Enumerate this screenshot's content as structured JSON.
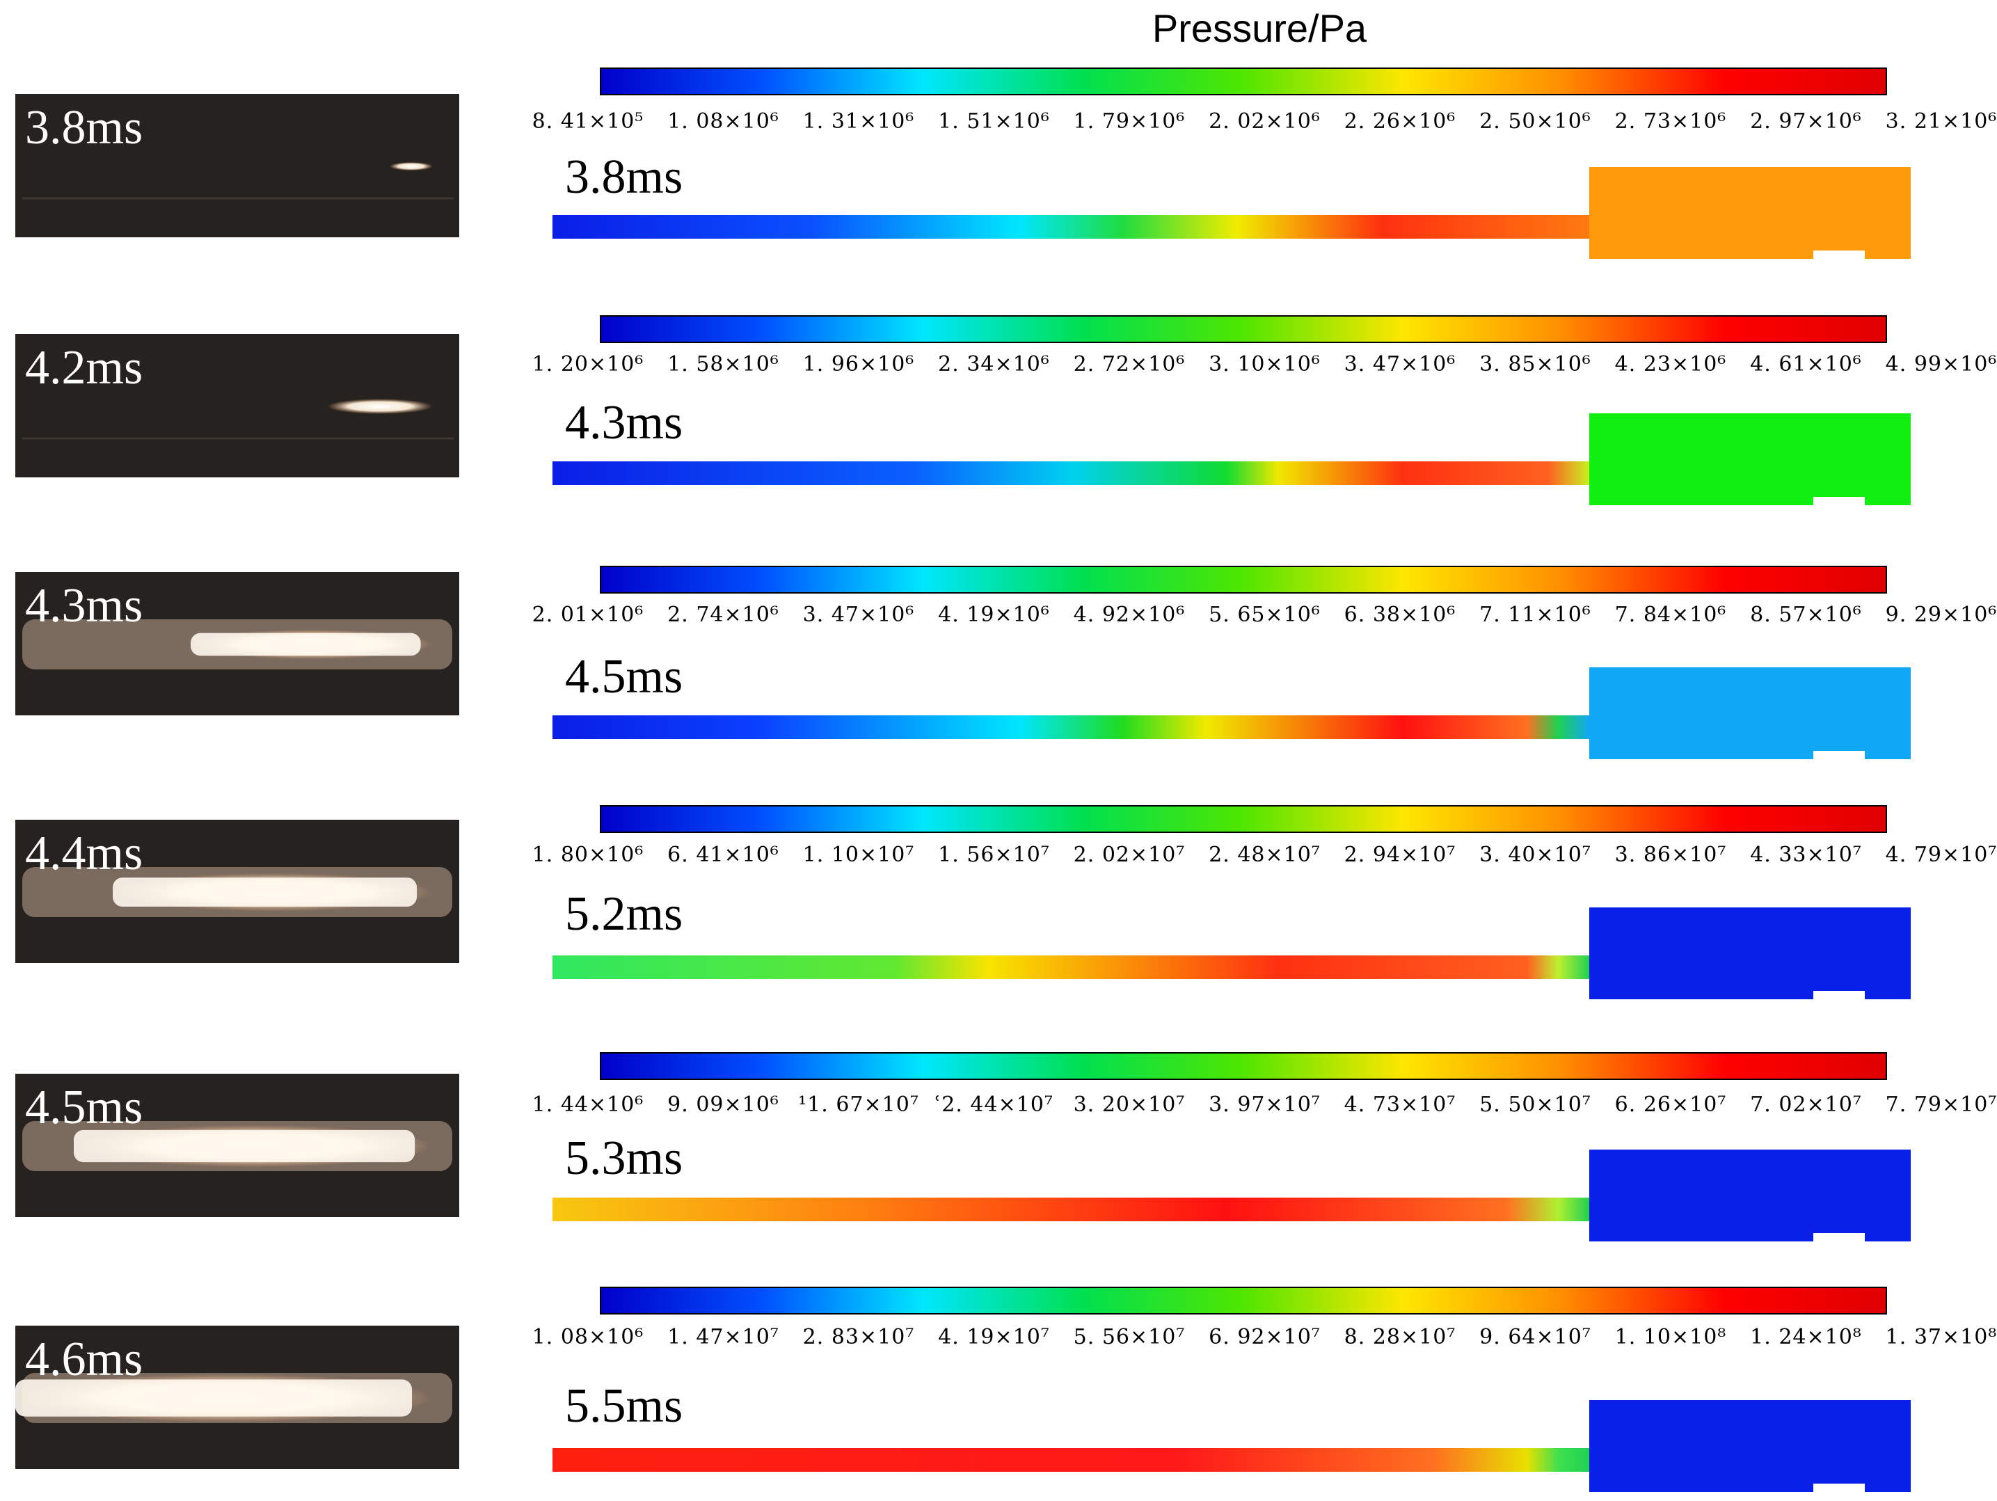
{
  "title": "Pressure/Pa",
  "colormap": [
    "#0000c8",
    "#0050ff",
    "#00e6ff",
    "#00e050",
    "#50e600",
    "#ffe600",
    "#ff8c00",
    "#ff0000",
    "#e00000"
  ],
  "rows": [
    {
      "photo_label": "3.8ms",
      "photo_glow": 0.04,
      "sim_label": "3.8ms",
      "ticks": [
        "8. 41×10⁵",
        "1. 08×10⁶",
        "1. 31×10⁶",
        "1. 51×10⁶",
        "1. 79×10⁶",
        "2. 02×10⁶",
        "2. 26×10⁶",
        "2. 50×10⁶",
        "2. 73×10⁶",
        "2. 97×10⁶",
        "3. 21×10⁶"
      ],
      "chamber_color": "#ff9a0a",
      "channel_stops": [
        [
          "0",
          "#0a1ee6"
        ],
        [
          "0.25",
          "#0a50ff"
        ],
        [
          "0.45",
          "#00e6ff"
        ],
        [
          "0.55",
          "#20dc40"
        ],
        [
          "0.66",
          "#f0ec00"
        ],
        [
          "0.8",
          "#ff3010"
        ],
        [
          "1",
          "#ff7a10"
        ]
      ]
    },
    {
      "photo_label": "4.2ms",
      "photo_glow": 0.2,
      "sim_label": "4.3ms",
      "ticks": [
        "1. 20×10⁶",
        "1. 58×10⁶",
        "1. 96×10⁶",
        "2. 34×10⁶",
        "2. 72×10⁶",
        "3. 10×10⁶",
        "3. 47×10⁶",
        "3. 85×10⁶",
        "4. 23×10⁶",
        "4. 61×10⁶",
        "4. 99×10⁶"
      ],
      "chamber_color": "#10ef10",
      "channel_stops": [
        [
          "0",
          "#0a1ee6"
        ],
        [
          "0.35",
          "#0a60ff"
        ],
        [
          "0.5",
          "#00d0f0"
        ],
        [
          "0.65",
          "#10dc30"
        ],
        [
          "0.7",
          "#f0e800"
        ],
        [
          "0.82",
          "#ff3010"
        ],
        [
          "0.96",
          "#ff6020"
        ],
        [
          "1",
          "#c8f020"
        ]
      ]
    },
    {
      "photo_label": "4.3ms",
      "photo_glow": 0.55,
      "sim_label": "4.5ms",
      "ticks": [
        "2. 01×10⁶",
        "2. 74×10⁶",
        "3. 47×10⁶",
        "4. 19×10⁶",
        "4. 92×10⁶",
        "5. 65×10⁶",
        "6. 38×10⁶",
        "7. 11×10⁶",
        "7. 84×10⁶",
        "8. 57×10⁶",
        "9. 29×10⁶"
      ],
      "chamber_color": "#10a8f5",
      "channel_stops": [
        [
          "0",
          "#0a1ee6"
        ],
        [
          "0.2",
          "#0a40ff"
        ],
        [
          "0.45",
          "#00e6ff"
        ],
        [
          "0.55",
          "#20dc20"
        ],
        [
          "0.63",
          "#f0ea00"
        ],
        [
          "0.82",
          "#ff1010"
        ],
        [
          "0.94",
          "#ff7020"
        ],
        [
          "0.97",
          "#20d050"
        ],
        [
          "1",
          "#10a8f5"
        ]
      ]
    },
    {
      "photo_label": "4.4ms",
      "photo_glow": 0.75,
      "sim_label": "5.2ms",
      "ticks": [
        "1. 80×10⁶",
        "6. 41×10⁶",
        "1. 10×10⁷",
        "1. 56×10⁷",
        "2. 02×10⁷",
        "2. 48×10⁷",
        "2. 94×10⁷",
        "3. 40×10⁷",
        "3. 86×10⁷",
        "4. 33×10⁷",
        "4. 79×10⁷"
      ],
      "chamber_color": "#0820e8",
      "channel_stops": [
        [
          "0",
          "#30e860"
        ],
        [
          "0.33",
          "#60e830"
        ],
        [
          "0.42",
          "#f8e400"
        ],
        [
          "0.7",
          "#ff3010"
        ],
        [
          "0.94",
          "#ff6020"
        ],
        [
          "0.97",
          "#c0f030"
        ],
        [
          "1",
          "#20d050"
        ]
      ]
    },
    {
      "photo_label": "4.5ms",
      "photo_glow": 0.85,
      "sim_label": "5.3ms",
      "ticks": [
        "1. 44×10⁶",
        "9. 09×10⁶",
        "¹1. 67×10⁷",
        "ʿ2. 44×10⁷",
        "3. 20×10⁷",
        "3. 97×10⁷",
        "4. 73×10⁷",
        "5. 50×10⁷",
        "6. 26×10⁷",
        "7. 02×10⁷",
        "7. 79×10⁷"
      ],
      "chamber_color": "#0820e8",
      "channel_stops": [
        [
          "0",
          "#f8c810"
        ],
        [
          "0.3",
          "#ff8010"
        ],
        [
          "0.65",
          "#ff1010"
        ],
        [
          "0.92",
          "#ff7020"
        ],
        [
          "0.97",
          "#b0f030"
        ],
        [
          "1",
          "#20d050"
        ]
      ]
    },
    {
      "photo_label": "4.6ms",
      "photo_glow": 1.0,
      "sim_label": "5.5ms",
      "ticks": [
        "1. 08×10⁶",
        "1. 47×10⁷",
        "2. 83×10⁷",
        "4. 19×10⁷",
        "5. 56×10⁷",
        "6. 92×10⁷",
        "8. 28×10⁷",
        "9. 64×10⁷",
        "1. 10×10⁸",
        "1. 24×10⁸",
        "1. 37×10⁸"
      ],
      "chamber_color": "#0820e8",
      "channel_stops": [
        [
          "0",
          "#ff2010"
        ],
        [
          "0.6",
          "#ff1818"
        ],
        [
          "0.85",
          "#ff7020"
        ],
        [
          "0.94",
          "#e8e000"
        ],
        [
          "0.97",
          "#40e050"
        ],
        [
          "1",
          "#20d050"
        ]
      ]
    }
  ]
}
